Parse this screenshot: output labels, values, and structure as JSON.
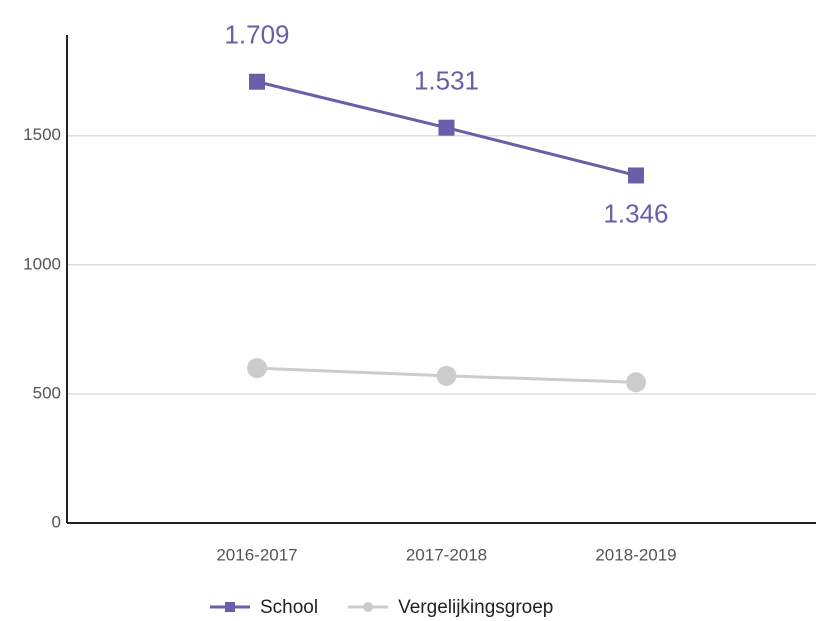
{
  "chart_data": {
    "type": "line",
    "categories": [
      "2016-2017",
      "2017-2018",
      "2018-2019"
    ],
    "series": [
      {
        "name": "School",
        "color": "#6b5ea8",
        "marker": "square",
        "values": [
          1709,
          1531,
          1346
        ],
        "value_labels": [
          "1.709",
          "1.531",
          "1.346"
        ]
      },
      {
        "name": "Vergelijkingsgroep",
        "color": "#cccccc",
        "marker": "circle",
        "values": [
          600,
          570,
          545
        ]
      }
    ],
    "ylim": [
      0,
      1890
    ],
    "yticks": [
      0,
      500,
      1000,
      1500
    ],
    "grid": true,
    "legend": "bottom"
  }
}
